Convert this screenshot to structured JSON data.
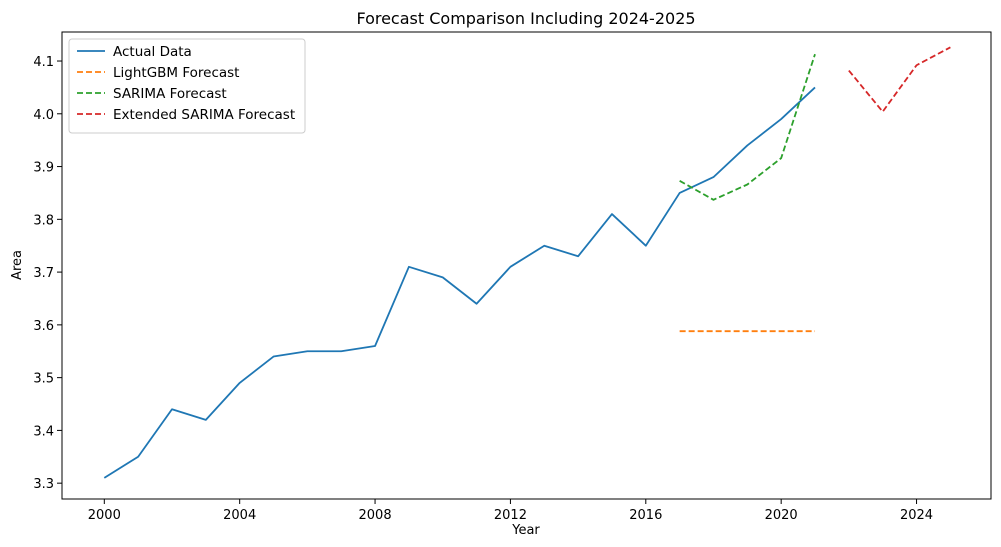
{
  "chart_data": {
    "type": "line",
    "title": "Forecast Comparison Including 2024-2025",
    "xlabel": "Year",
    "ylabel": "Area",
    "xlim": [
      1998.75,
      2026.2
    ],
    "ylim": [
      3.27,
      4.155
    ],
    "xticks": [
      2000,
      2004,
      2008,
      2012,
      2016,
      2020,
      2024
    ],
    "yticks": [
      3.3,
      3.4,
      3.5,
      3.6,
      3.7,
      3.8,
      3.9,
      4.0,
      4.1
    ],
    "ytick_labels": [
      "3.3",
      "3.4",
      "3.5",
      "3.6",
      "3.7",
      "3.8",
      "3.9",
      "4.0",
      "4.1"
    ],
    "grid": false,
    "legend_position": "top-left",
    "series": [
      {
        "name": "Actual Data",
        "color": "#1f77b4",
        "style": "solid",
        "x": [
          2000,
          2001,
          2002,
          2003,
          2004,
          2005,
          2006,
          2007,
          2008,
          2009,
          2010,
          2011,
          2012,
          2013,
          2014,
          2015,
          2016,
          2017,
          2018,
          2019,
          2020,
          2021
        ],
        "y": [
          3.31,
          3.35,
          3.44,
          3.42,
          3.49,
          3.54,
          3.55,
          3.55,
          3.56,
          3.71,
          3.69,
          3.64,
          3.71,
          3.75,
          3.73,
          3.81,
          3.75,
          3.85,
          3.88,
          3.94,
          3.99,
          4.05
        ]
      },
      {
        "name": "LightGBM Forecast",
        "color": "#ff7f0e",
        "style": "dashed",
        "x": [
          2017,
          2018,
          2019,
          2020,
          2021
        ],
        "y": [
          3.588,
          3.588,
          3.588,
          3.588,
          3.588
        ]
      },
      {
        "name": "SARIMA Forecast",
        "color": "#2ca02c",
        "style": "dashed",
        "x": [
          2017,
          2018,
          2019,
          2020,
          2021
        ],
        "y": [
          3.873,
          3.837,
          3.866,
          3.916,
          4.113
        ]
      },
      {
        "name": "Extended SARIMA Forecast",
        "color": "#d62728",
        "style": "dashed",
        "x": [
          2022,
          2023,
          2024,
          2025
        ],
        "y": [
          4.082,
          4.004,
          4.092,
          4.126
        ]
      }
    ]
  }
}
